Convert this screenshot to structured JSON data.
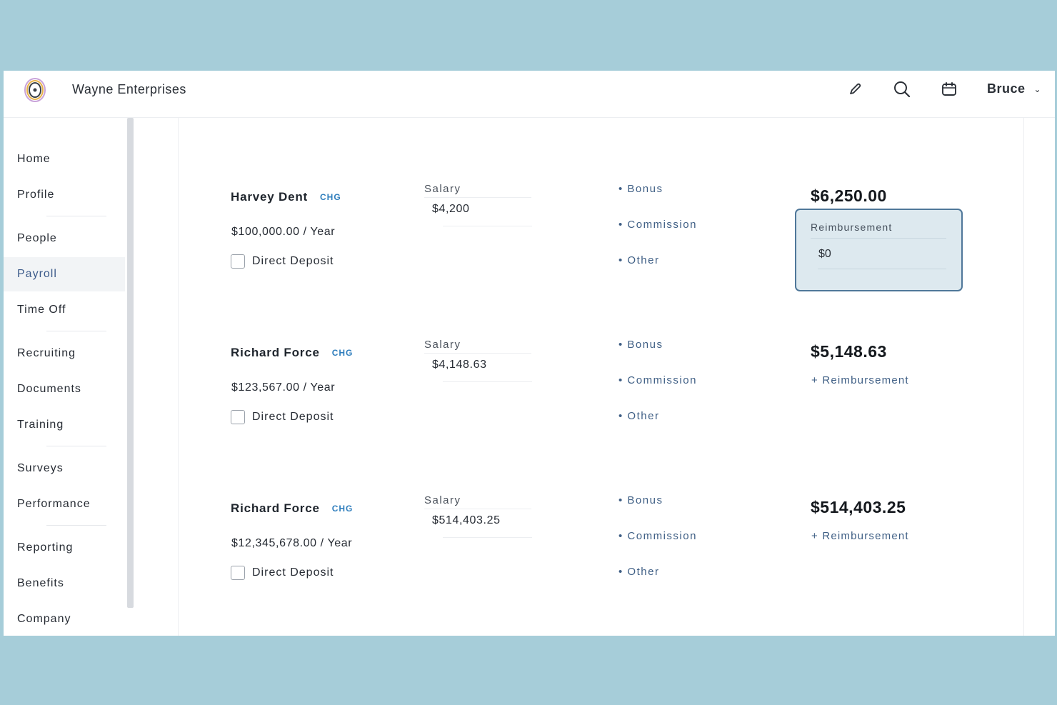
{
  "header": {
    "company": "Wayne Enterprises",
    "user": "Bruce",
    "icons": [
      "pencil-icon",
      "search-icon",
      "calendar-icon",
      "chevron-down-icon"
    ]
  },
  "sidebar": {
    "items": [
      {
        "label": "Home"
      },
      {
        "label": "Profile"
      },
      {
        "label": "People"
      },
      {
        "label": "Payroll",
        "active": true
      },
      {
        "label": "Time Off"
      },
      {
        "label": "Recruiting"
      },
      {
        "label": "Documents"
      },
      {
        "label": "Training"
      },
      {
        "label": "Surveys"
      },
      {
        "label": "Performance"
      },
      {
        "label": "Reporting"
      },
      {
        "label": "Benefits"
      },
      {
        "label": "Company"
      }
    ]
  },
  "payroll": {
    "salary_label": "Salary",
    "direct_deposit_label": "Direct Deposit",
    "bonus_label": "• Bonus",
    "commission_label": "• Commission",
    "other_label": "• Other",
    "reimbursement_link": "+ Reimbursement",
    "reimbursement_field_label": "Reimbursement",
    "rows": [
      {
        "name": "Harvey Dent",
        "badge": "CHG",
        "annual": "$100,000.00 / Year",
        "salary": "$4,200",
        "net": "$6,250.00",
        "reimbursement_value": "$0"
      },
      {
        "name": "Richard Force",
        "badge": "CHG",
        "annual": "$123,567.00 / Year",
        "salary": "$4,148.63",
        "net": "$5,148.63"
      },
      {
        "name": "Richard Force",
        "badge": "CHG",
        "annual": "$12,345,678.00 / Year",
        "salary": "$514,403.25",
        "net": "$514,403.25"
      }
    ]
  },
  "colors": {
    "backdrop": "#a6cdd9",
    "accent_link": "#3f5f85",
    "badge": "#2f7ebd",
    "reimbursement_box_bg": "#dde9ef",
    "reimbursement_box_border": "#4f7799"
  }
}
